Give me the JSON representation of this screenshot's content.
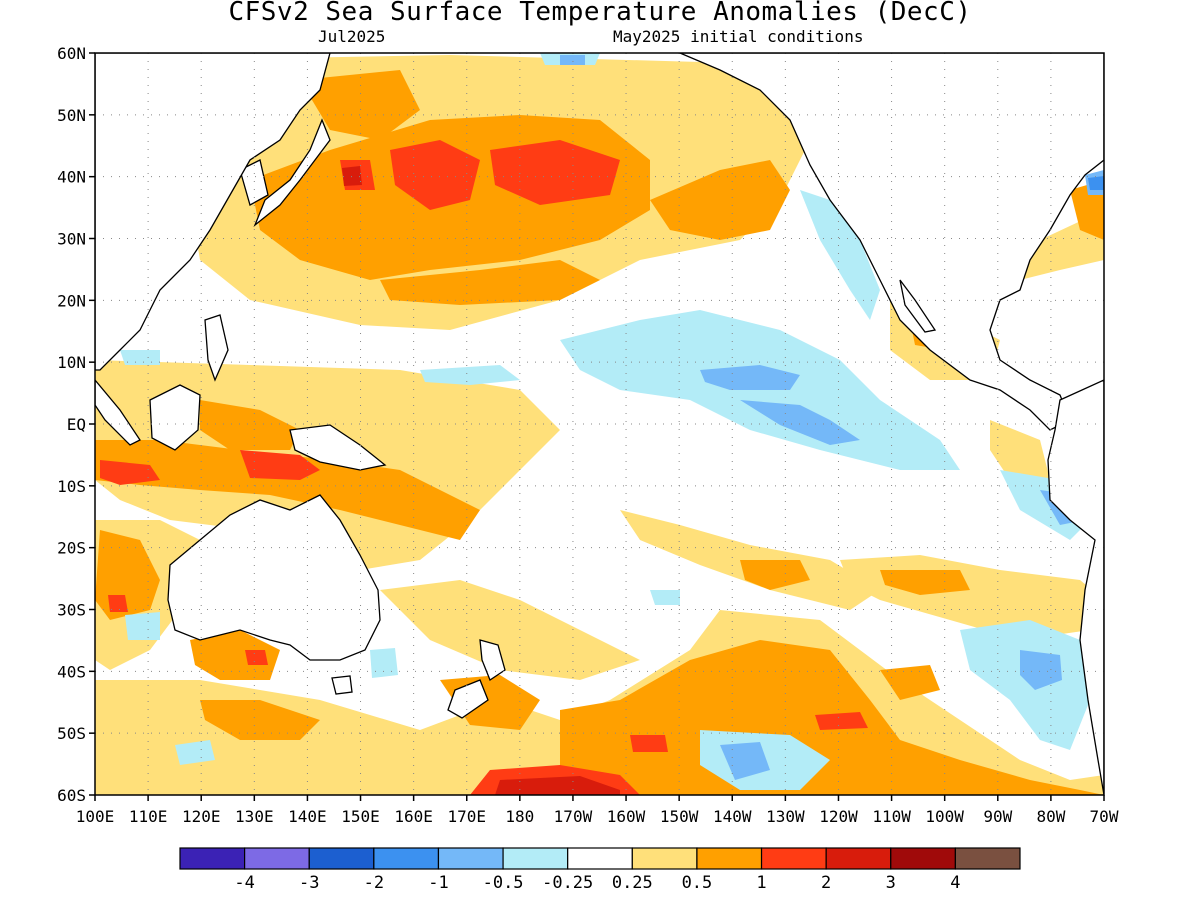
{
  "header": {
    "title": "CFSv2 Sea Surface Temperature Anomalies (DecC)",
    "target_month": "Jul2025",
    "init_conditions": "May2025 initial conditions"
  },
  "map": {
    "projection": "cylindrical-equidistant",
    "lon_range": "100E to 70W",
    "lat_range": "60S to 60N",
    "grid": "dotted",
    "lat_labels": [
      "60N",
      "50N",
      "40N",
      "30N",
      "20N",
      "10N",
      "EQ",
      "10S",
      "20S",
      "30S",
      "40S",
      "50S",
      "60S"
    ],
    "lon_labels": [
      "100E",
      "110E",
      "120E",
      "130E",
      "140E",
      "150E",
      "160E",
      "170E",
      "180",
      "170W",
      "160W",
      "150W",
      "140W",
      "130W",
      "120W",
      "110W",
      "100W",
      "90W",
      "80W",
      "70W"
    ]
  },
  "colorbar": {
    "levels": [
      "-4",
      "-3",
      "-2",
      "-1",
      "-0.5",
      "-0.25",
      "0.25",
      "0.5",
      "1",
      "2",
      "3",
      "4"
    ],
    "colors": [
      "#3b22b5",
      "#7d6ae5",
      "#1c5fd0",
      "#3c91f0",
      "#74b8f8",
      "#b3ecf7",
      "#ffffff",
      "#ffe07a",
      "#ffa000",
      "#ff3c14",
      "#d81c0c",
      "#a00a0a",
      "#7a5040"
    ]
  }
}
